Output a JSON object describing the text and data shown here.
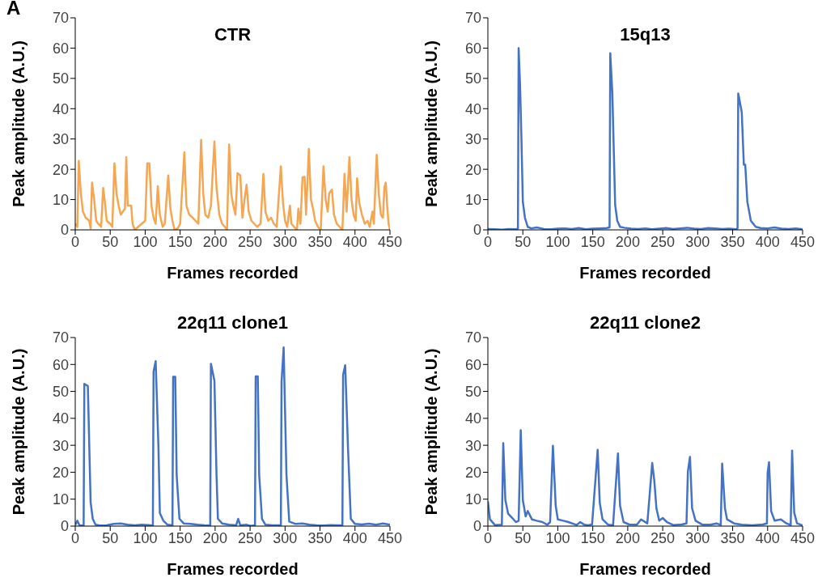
{
  "chart_data": [
    {
      "type": "line",
      "title": "CTR",
      "xlabel": "Frames recorded",
      "ylabel": "Peak amplitude (A.U.)",
      "annotations": [
        "A"
      ],
      "xlim": [
        0,
        450
      ],
      "xticks": [
        0,
        50,
        100,
        150,
        200,
        250,
        300,
        350,
        400,
        450
      ],
      "ylim": [
        0,
        70
      ],
      "yticks": [
        0,
        10,
        20,
        30,
        40,
        50,
        60,
        70
      ],
      "x": [
        0,
        3,
        5,
        8,
        11,
        15,
        20,
        22,
        24,
        27,
        30,
        33,
        37,
        40,
        42,
        45,
        50,
        53,
        56,
        59,
        62,
        65,
        68,
        71,
        73,
        75,
        80,
        82,
        85,
        90,
        95,
        100,
        103,
        106,
        109,
        112,
        115,
        118,
        121,
        125,
        128,
        133,
        136,
        139,
        142,
        146,
        150,
        156,
        159,
        163,
        168,
        172,
        176,
        180,
        183,
        186,
        190,
        194,
        199,
        202,
        206,
        210,
        214,
        217,
        220,
        223,
        226,
        229,
        232,
        236,
        239,
        242,
        245,
        248,
        252,
        256,
        260,
        265,
        269,
        272,
        276,
        280,
        284,
        288,
        294,
        297,
        300,
        303,
        307,
        309,
        313,
        317,
        319,
        322,
        325,
        328,
        330,
        334,
        337,
        340,
        343,
        347,
        351,
        355,
        358,
        361,
        363,
        367,
        370,
        374,
        378,
        382,
        385,
        388,
        392,
        395,
        398,
        401,
        403,
        406,
        410,
        414,
        418,
        421,
        425,
        427,
        431,
        434,
        437,
        440,
        442,
        444,
        446,
        448,
        450
      ],
      "series": [
        {
          "color": "#f4a652",
          "values": [
            2,
            1,
            22.8,
            12,
            6,
            4,
            3,
            0.5,
            15.6,
            10,
            3,
            2,
            1,
            13.8,
            10,
            3,
            2,
            1,
            22,
            12,
            8,
            5,
            6,
            7,
            24,
            8,
            8,
            2,
            0,
            1,
            2,
            3,
            22,
            22,
            8,
            4,
            2,
            14.4,
            5,
            1,
            2,
            18,
            7,
            3,
            0,
            0.4,
            2,
            25.6,
            8,
            5,
            4,
            3,
            2,
            29.7,
            12,
            5,
            4,
            8,
            29.2,
            14,
            5,
            2,
            1,
            0,
            28.2,
            12,
            8,
            5,
            18.7,
            18,
            4,
            10,
            14.9,
            6,
            3,
            2,
            1,
            2,
            18.5,
            6,
            3,
            4,
            2,
            1,
            21,
            9,
            3,
            1,
            8,
            2,
            1,
            0,
            7,
            2,
            17.4,
            17.5,
            5,
            26.7,
            10,
            7,
            3,
            1,
            0,
            21,
            10,
            6,
            12,
            13.3,
            5,
            2,
            1,
            0,
            18.5,
            6,
            24,
            10,
            5,
            3,
            17,
            9,
            5,
            2,
            3,
            1,
            6,
            2,
            24.8,
            12,
            5,
            4,
            14,
            15.6,
            8,
            2,
            0
          ]
        }
      ]
    },
    {
      "type": "line",
      "title": "15q13",
      "xlabel": "Frames recorded",
      "ylabel": "Peak amplitude (A.U.)",
      "xlim": [
        0,
        450
      ],
      "xticks": [
        0,
        50,
        100,
        150,
        200,
        250,
        300,
        350,
        400,
        450
      ],
      "ylim": [
        0,
        70
      ],
      "yticks": [
        0,
        10,
        20,
        30,
        40,
        50,
        60,
        70
      ],
      "x": [
        0,
        10,
        20,
        30,
        40,
        43,
        44,
        46,
        48,
        50,
        53,
        57,
        62,
        70,
        80,
        90,
        100,
        110,
        120,
        130,
        140,
        150,
        160,
        170,
        174,
        175,
        178,
        180,
        182,
        185,
        189,
        195,
        205,
        215,
        225,
        235,
        245,
        255,
        265,
        275,
        285,
        295,
        305,
        315,
        325,
        335,
        345,
        355,
        357,
        358,
        363,
        366,
        368,
        371,
        376,
        383,
        390,
        400,
        410,
        420,
        430,
        440,
        450
      ],
      "series": [
        {
          "color": "#4472c4",
          "values": [
            0.3,
            0.2,
            0.1,
            0.3,
            0.2,
            0.4,
            60,
            48,
            30,
            9.3,
            4,
            1,
            0.5,
            0.8,
            0.3,
            0.2,
            0.4,
            0.5,
            0.3,
            0.6,
            0.2,
            0.4,
            0.5,
            0.6,
            0.8,
            58.3,
            45,
            26.6,
            8.3,
            3,
            1,
            0.7,
            0.4,
            0.3,
            0.5,
            0.2,
            0.4,
            0.6,
            0.3,
            0.5,
            0.7,
            0.4,
            0.3,
            0.6,
            0.5,
            0.3,
            0.4,
            0.2,
            0.5,
            45,
            38.9,
            21.5,
            21.5,
            9.3,
            3,
            1,
            0.6,
            0.5,
            0.8,
            0.4,
            0.3,
            0.5,
            0.2
          ]
        }
      ]
    },
    {
      "type": "line",
      "title": "22q11 clone1",
      "xlabel": "Frames recorded",
      "ylabel": "Peak amplitude (A.U.)",
      "xlim": [
        0,
        450
      ],
      "xticks": [
        0,
        50,
        100,
        150,
        200,
        250,
        300,
        350,
        400,
        450
      ],
      "ylim": [
        0,
        70
      ],
      "yticks": [
        0,
        10,
        20,
        30,
        40,
        50,
        60,
        70
      ],
      "x": [
        0,
        3,
        6,
        12,
        13,
        18,
        22,
        25,
        29,
        35,
        45,
        55,
        65,
        75,
        85,
        95,
        105,
        111,
        112,
        115,
        119,
        121,
        126,
        132,
        139,
        140,
        143,
        145,
        149,
        155,
        165,
        175,
        185,
        193,
        194,
        199,
        202,
        204,
        210,
        220,
        230,
        233,
        236,
        245,
        251,
        257,
        258,
        261,
        263,
        267,
        272,
        282,
        294,
        295,
        298,
        302,
        306,
        315,
        325,
        335,
        345,
        355,
        365,
        375,
        382,
        383,
        386,
        390,
        394,
        400,
        410,
        420,
        430,
        440,
        450
      ],
      "series": [
        {
          "color": "#4472c4",
          "values": [
            0.5,
            2,
            0.3,
            0.2,
            52.8,
            52,
            8.9,
            2.7,
            0.5,
            0.2,
            0.3,
            0.8,
            1,
            0.5,
            0.3,
            0.5,
            0.4,
            0.2,
            57.4,
            61.2,
            29,
            4.8,
            2,
            0.5,
            0.3,
            55.4,
            55.4,
            19,
            2.7,
            1,
            0.8,
            0.5,
            0.3,
            0.2,
            60.2,
            54,
            19,
            2.7,
            1,
            0.5,
            0.3,
            2.7,
            0.3,
            0.5,
            0.1,
            0.3,
            55.6,
            55.6,
            19,
            2.7,
            0.5,
            0.3,
            0.3,
            53.6,
            66.3,
            19,
            1.7,
            0.8,
            1,
            0.5,
            0.3,
            0.2,
            0.4,
            0.3,
            0.3,
            56.2,
            59.7,
            29,
            2.7,
            0.8,
            0.6,
            0.9,
            0.5,
            1,
            0.5
          ]
        }
      ]
    },
    {
      "type": "line",
      "title": "22q11 clone2",
      "xlabel": "Frames recorded",
      "ylabel": "Peak amplitude (A.U.)",
      "xlim": [
        0,
        450
      ],
      "xticks": [
        0,
        50,
        100,
        150,
        200,
        250,
        300,
        350,
        400,
        450
      ],
      "ylim": [
        0,
        70
      ],
      "yticks": [
        0,
        10,
        20,
        30,
        40,
        50,
        60,
        70
      ],
      "x": [
        0,
        3,
        10,
        20,
        22,
        25,
        29,
        35,
        40,
        44,
        47,
        50,
        54,
        57,
        63,
        70,
        78,
        85,
        89,
        93,
        97,
        100,
        108,
        115,
        127,
        132,
        138,
        143,
        149,
        157,
        160,
        164,
        172,
        179,
        186,
        189,
        194,
        202,
        213,
        219,
        228,
        235,
        238,
        241,
        245,
        250,
        256,
        265,
        277,
        284,
        286,
        289,
        292,
        297,
        307,
        318,
        327,
        333,
        335,
        339,
        342,
        352,
        363,
        378,
        393,
        399,
        400,
        402,
        405,
        410,
        419,
        427,
        432,
        433,
        435,
        438,
        442,
        450
      ],
      "series": [
        {
          "color": "#4472c4",
          "values": [
            9.2,
            2.5,
            0.4,
            0.5,
            30.8,
            9.7,
            4.6,
            3,
            1.5,
            2,
            35.6,
            9.7,
            3.6,
            5.6,
            2.5,
            2,
            1.5,
            0.5,
            1.5,
            29.8,
            7.6,
            2.5,
            2,
            1.5,
            0.4,
            1.5,
            0.5,
            0.3,
            0.6,
            28.3,
            8.6,
            2.5,
            0.5,
            0.3,
            27,
            7.6,
            1.5,
            0.6,
            0.5,
            2.5,
            1,
            23.4,
            16.8,
            6.6,
            2,
            3,
            1.5,
            0.4,
            0.6,
            1,
            20.3,
            25.7,
            6.6,
            2,
            0.5,
            0.5,
            1,
            0.4,
            23.2,
            6.6,
            2.5,
            1,
            0.5,
            0.3,
            0.6,
            1,
            19.8,
            23.7,
            5.6,
            2,
            2.5,
            1,
            0.5,
            0.4,
            28,
            5,
            1,
            0.3
          ]
        }
      ]
    }
  ]
}
